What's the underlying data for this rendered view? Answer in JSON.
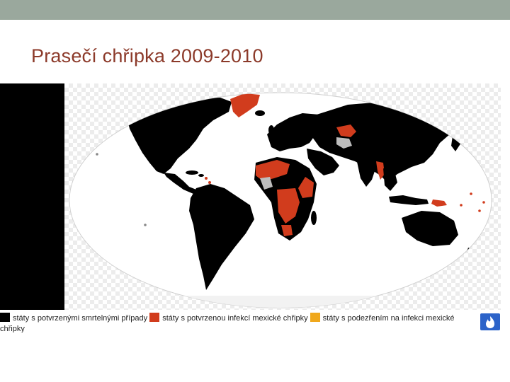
{
  "slide": {
    "title": "Prasečí chřipka 2009-2010"
  },
  "map": {
    "subject": "swine flu 2009-2010 world map",
    "colors": {
      "ocean": "#ffffff",
      "confirmed_deaths": "#000000",
      "confirmed_infection": "#d13c1d",
      "suspected": "#f0a81c",
      "no_data": "#bdbdbd"
    }
  },
  "legend": {
    "items": [
      {
        "label": "státy s potvrzenými smrtelnými případy",
        "color": "#000000"
      },
      {
        "label": "státy s potvrzenou infekcí mexické chřipky",
        "color": "#d13c1d"
      },
      {
        "label": "státy s podezřením na infekci mexické chřipky",
        "color": "#f0a81c"
      }
    ]
  },
  "badge": {
    "icon": "flame-badge-icon",
    "color": "#2c63c9"
  }
}
